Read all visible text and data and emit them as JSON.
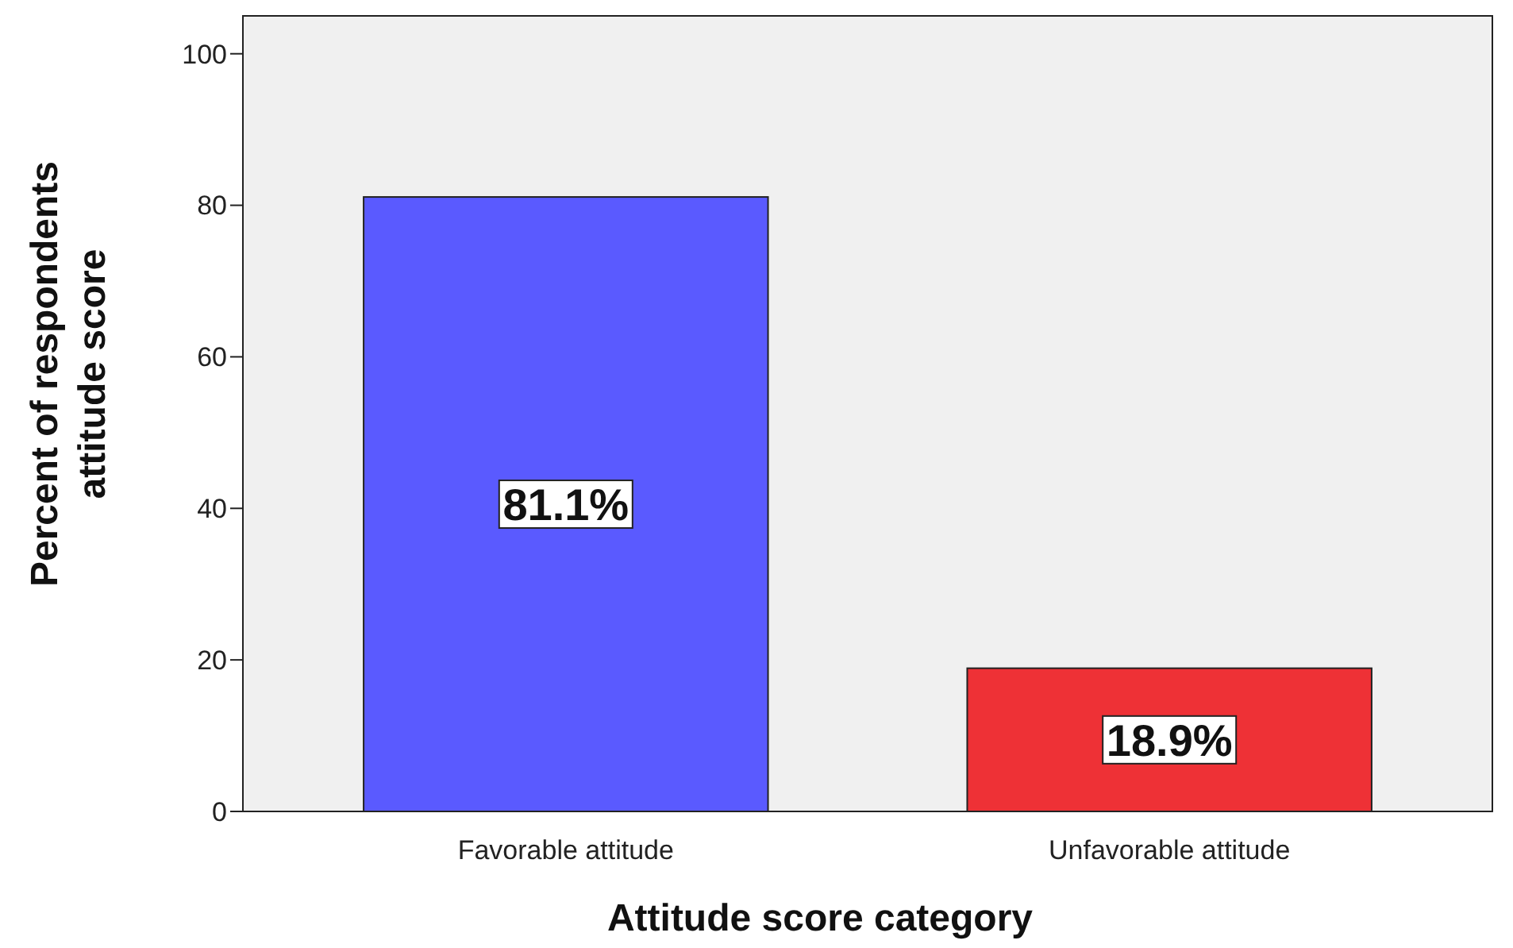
{
  "chart_data": {
    "type": "bar",
    "xlabel": "Attitude score category",
    "ylabel": "Percent of  respondents attitude score",
    "categories": [
      "Favorable attitude",
      "Unfavorable attitude"
    ],
    "values": [
      81.1,
      18.9
    ],
    "colors": [
      "#5a5aff",
      "#ee3136"
    ],
    "value_labels": [
      "81.1%",
      "18.9%"
    ],
    "ylim": [
      0,
      105
    ],
    "yticks": [
      0,
      20,
      40,
      60,
      80,
      100
    ],
    "grid": false
  }
}
